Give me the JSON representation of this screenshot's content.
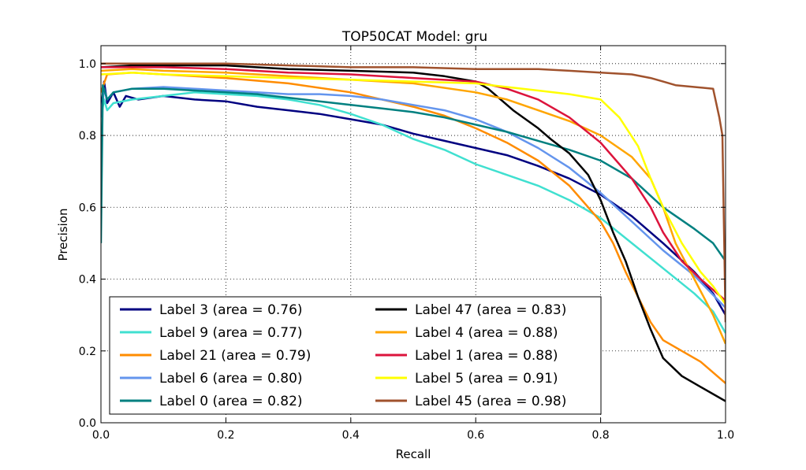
{
  "chart_data": {
    "type": "line",
    "title": "TOP50CAT Model: gru",
    "xlabel": "Recall",
    "ylabel": "Precision",
    "xlim": [
      0.0,
      1.0
    ],
    "ylim": [
      0.0,
      1.05
    ],
    "xticks": [
      0.0,
      0.2,
      0.4,
      0.6,
      0.8,
      1.0
    ],
    "xtick_labels": [
      "0.0",
      "0.2",
      "0.4",
      "0.6",
      "0.8",
      "1.0"
    ],
    "yticks": [
      0.0,
      0.2,
      0.4,
      0.6,
      0.8,
      1.0
    ],
    "ytick_labels": [
      "0.0",
      "0.2",
      "0.4",
      "0.6",
      "0.8",
      "1.0"
    ],
    "grid": true,
    "legend_position": "lower-left",
    "series": [
      {
        "name": "Label 3 (area = 0.76)",
        "color": "#000080",
        "points": [
          [
            0,
            0.87
          ],
          [
            0.005,
            0.95
          ],
          [
            0.01,
            0.89
          ],
          [
            0.02,
            0.92
          ],
          [
            0.03,
            0.88
          ],
          [
            0.04,
            0.91
          ],
          [
            0.06,
            0.9
          ],
          [
            0.1,
            0.91
          ],
          [
            0.15,
            0.9
          ],
          [
            0.2,
            0.895
          ],
          [
            0.25,
            0.88
          ],
          [
            0.3,
            0.87
          ],
          [
            0.35,
            0.86
          ],
          [
            0.4,
            0.845
          ],
          [
            0.45,
            0.83
          ],
          [
            0.5,
            0.805
          ],
          [
            0.55,
            0.785
          ],
          [
            0.6,
            0.765
          ],
          [
            0.65,
            0.745
          ],
          [
            0.7,
            0.715
          ],
          [
            0.75,
            0.68
          ],
          [
            0.8,
            0.635
          ],
          [
            0.85,
            0.575
          ],
          [
            0.9,
            0.5
          ],
          [
            0.95,
            0.42
          ],
          [
            0.98,
            0.36
          ],
          [
            1.0,
            0.3
          ]
        ]
      },
      {
        "name": "Label 9 (area = 0.77)",
        "color": "#40E0D0",
        "points": [
          [
            0,
            0.85
          ],
          [
            0.005,
            0.9
          ],
          [
            0.01,
            0.87
          ],
          [
            0.02,
            0.89
          ],
          [
            0.05,
            0.9
          ],
          [
            0.1,
            0.91
          ],
          [
            0.15,
            0.92
          ],
          [
            0.2,
            0.915
          ],
          [
            0.25,
            0.91
          ],
          [
            0.3,
            0.9
          ],
          [
            0.35,
            0.885
          ],
          [
            0.4,
            0.86
          ],
          [
            0.45,
            0.83
          ],
          [
            0.5,
            0.79
          ],
          [
            0.55,
            0.76
          ],
          [
            0.6,
            0.72
          ],
          [
            0.65,
            0.69
          ],
          [
            0.7,
            0.66
          ],
          [
            0.75,
            0.62
          ],
          [
            0.8,
            0.57
          ],
          [
            0.85,
            0.5
          ],
          [
            0.9,
            0.43
          ],
          [
            0.95,
            0.36
          ],
          [
            0.98,
            0.31
          ],
          [
            1.0,
            0.25
          ]
        ]
      },
      {
        "name": "Label 21 (area = 0.79)",
        "color": "#FF8C00",
        "points": [
          [
            0,
            0.92
          ],
          [
            0.01,
            0.97
          ],
          [
            0.05,
            0.975
          ],
          [
            0.1,
            0.97
          ],
          [
            0.2,
            0.96
          ],
          [
            0.3,
            0.945
          ],
          [
            0.4,
            0.92
          ],
          [
            0.5,
            0.88
          ],
          [
            0.55,
            0.855
          ],
          [
            0.6,
            0.82
          ],
          [
            0.65,
            0.78
          ],
          [
            0.7,
            0.73
          ],
          [
            0.75,
            0.66
          ],
          [
            0.78,
            0.6
          ],
          [
            0.8,
            0.56
          ],
          [
            0.82,
            0.5
          ],
          [
            0.84,
            0.42
          ],
          [
            0.86,
            0.35
          ],
          [
            0.88,
            0.28
          ],
          [
            0.9,
            0.23
          ],
          [
            0.93,
            0.2
          ],
          [
            0.96,
            0.17
          ],
          [
            1.0,
            0.11
          ]
        ]
      },
      {
        "name": "Label 6 (area = 0.80)",
        "color": "#6495ED",
        "points": [
          [
            0,
            0.85
          ],
          [
            0.005,
            0.93
          ],
          [
            0.01,
            0.9
          ],
          [
            0.02,
            0.92
          ],
          [
            0.05,
            0.93
          ],
          [
            0.1,
            0.935
          ],
          [
            0.15,
            0.93
          ],
          [
            0.2,
            0.925
          ],
          [
            0.25,
            0.92
          ],
          [
            0.3,
            0.915
          ],
          [
            0.35,
            0.915
          ],
          [
            0.4,
            0.91
          ],
          [
            0.45,
            0.9
          ],
          [
            0.5,
            0.885
          ],
          [
            0.55,
            0.87
          ],
          [
            0.6,
            0.845
          ],
          [
            0.65,
            0.81
          ],
          [
            0.7,
            0.765
          ],
          [
            0.75,
            0.71
          ],
          [
            0.8,
            0.64
          ],
          [
            0.85,
            0.56
          ],
          [
            0.9,
            0.48
          ],
          [
            0.95,
            0.41
          ],
          [
            1.0,
            0.32
          ]
        ]
      },
      {
        "name": "Label 0 (area = 0.82)",
        "color": "#008080",
        "points": [
          [
            0,
            0.5
          ],
          [
            0.003,
            0.94
          ],
          [
            0.01,
            0.9
          ],
          [
            0.02,
            0.92
          ],
          [
            0.05,
            0.93
          ],
          [
            0.1,
            0.93
          ],
          [
            0.15,
            0.925
          ],
          [
            0.2,
            0.92
          ],
          [
            0.25,
            0.915
          ],
          [
            0.3,
            0.905
          ],
          [
            0.35,
            0.895
          ],
          [
            0.4,
            0.885
          ],
          [
            0.45,
            0.875
          ],
          [
            0.5,
            0.865
          ],
          [
            0.55,
            0.85
          ],
          [
            0.6,
            0.83
          ],
          [
            0.65,
            0.81
          ],
          [
            0.7,
            0.785
          ],
          [
            0.75,
            0.76
          ],
          [
            0.8,
            0.73
          ],
          [
            0.85,
            0.68
          ],
          [
            0.9,
            0.6
          ],
          [
            0.95,
            0.54
          ],
          [
            0.98,
            0.5
          ],
          [
            1.0,
            0.45
          ]
        ]
      },
      {
        "name": "Label 47 (area = 0.83)",
        "color": "#000000",
        "points": [
          [
            0,
            0.99
          ],
          [
            0.05,
            0.995
          ],
          [
            0.1,
            0.995
          ],
          [
            0.2,
            0.995
          ],
          [
            0.3,
            0.985
          ],
          [
            0.4,
            0.98
          ],
          [
            0.5,
            0.975
          ],
          [
            0.55,
            0.965
          ],
          [
            0.6,
            0.95
          ],
          [
            0.62,
            0.93
          ],
          [
            0.64,
            0.9
          ],
          [
            0.66,
            0.87
          ],
          [
            0.7,
            0.82
          ],
          [
            0.72,
            0.79
          ],
          [
            0.75,
            0.75
          ],
          [
            0.78,
            0.69
          ],
          [
            0.8,
            0.62
          ],
          [
            0.82,
            0.53
          ],
          [
            0.84,
            0.45
          ],
          [
            0.86,
            0.35
          ],
          [
            0.88,
            0.26
          ],
          [
            0.9,
            0.18
          ],
          [
            0.93,
            0.13
          ],
          [
            0.96,
            0.1
          ],
          [
            1.0,
            0.06
          ]
        ]
      },
      {
        "name": "Label 4 (area = 0.88)",
        "color": "#FFA500",
        "points": [
          [
            0,
            0.98
          ],
          [
            0.05,
            0.985
          ],
          [
            0.1,
            0.98
          ],
          [
            0.2,
            0.975
          ],
          [
            0.3,
            0.965
          ],
          [
            0.4,
            0.955
          ],
          [
            0.5,
            0.945
          ],
          [
            0.6,
            0.92
          ],
          [
            0.65,
            0.9
          ],
          [
            0.7,
            0.87
          ],
          [
            0.75,
            0.84
          ],
          [
            0.8,
            0.8
          ],
          [
            0.85,
            0.74
          ],
          [
            0.88,
            0.68
          ],
          [
            0.9,
            0.6
          ],
          [
            0.92,
            0.5
          ],
          [
            0.95,
            0.4
          ],
          [
            0.98,
            0.3
          ],
          [
            1.0,
            0.22
          ]
        ]
      },
      {
        "name": "Label 1 (area = 0.88)",
        "color": "#DC143C",
        "points": [
          [
            0,
            0.99
          ],
          [
            0.1,
            0.99
          ],
          [
            0.2,
            0.985
          ],
          [
            0.3,
            0.975
          ],
          [
            0.4,
            0.97
          ],
          [
            0.5,
            0.96
          ],
          [
            0.6,
            0.95
          ],
          [
            0.65,
            0.93
          ],
          [
            0.7,
            0.9
          ],
          [
            0.75,
            0.85
          ],
          [
            0.8,
            0.78
          ],
          [
            0.85,
            0.68
          ],
          [
            0.88,
            0.6
          ],
          [
            0.9,
            0.53
          ],
          [
            0.93,
            0.45
          ],
          [
            0.96,
            0.4
          ],
          [
            1.0,
            0.34
          ]
        ]
      },
      {
        "name": "Label 5 (area = 0.91)",
        "color": "#FFFF00",
        "points": [
          [
            0,
            0.97
          ],
          [
            0.05,
            0.975
          ],
          [
            0.1,
            0.97
          ],
          [
            0.2,
            0.965
          ],
          [
            0.3,
            0.96
          ],
          [
            0.4,
            0.955
          ],
          [
            0.5,
            0.95
          ],
          [
            0.6,
            0.945
          ],
          [
            0.65,
            0.935
          ],
          [
            0.7,
            0.925
          ],
          [
            0.75,
            0.915
          ],
          [
            0.8,
            0.9
          ],
          [
            0.83,
            0.85
          ],
          [
            0.86,
            0.77
          ],
          [
            0.88,
            0.68
          ],
          [
            0.9,
            0.6
          ],
          [
            0.93,
            0.5
          ],
          [
            0.96,
            0.42
          ],
          [
            0.98,
            0.38
          ],
          [
            1.0,
            0.33
          ]
        ]
      },
      {
        "name": "Label 45 (area = 0.98)",
        "color": "#A0522D",
        "points": [
          [
            0,
            1.0
          ],
          [
            0.1,
            1.0
          ],
          [
            0.2,
            1.0
          ],
          [
            0.3,
            0.995
          ],
          [
            0.4,
            0.99
          ],
          [
            0.5,
            0.99
          ],
          [
            0.6,
            0.985
          ],
          [
            0.7,
            0.985
          ],
          [
            0.75,
            0.98
          ],
          [
            0.8,
            0.975
          ],
          [
            0.85,
            0.97
          ],
          [
            0.88,
            0.96
          ],
          [
            0.9,
            0.95
          ],
          [
            0.92,
            0.94
          ],
          [
            0.98,
            0.93
          ],
          [
            0.99,
            0.85
          ],
          [
            0.995,
            0.8
          ],
          [
            1.0,
            0.28
          ]
        ]
      }
    ]
  }
}
